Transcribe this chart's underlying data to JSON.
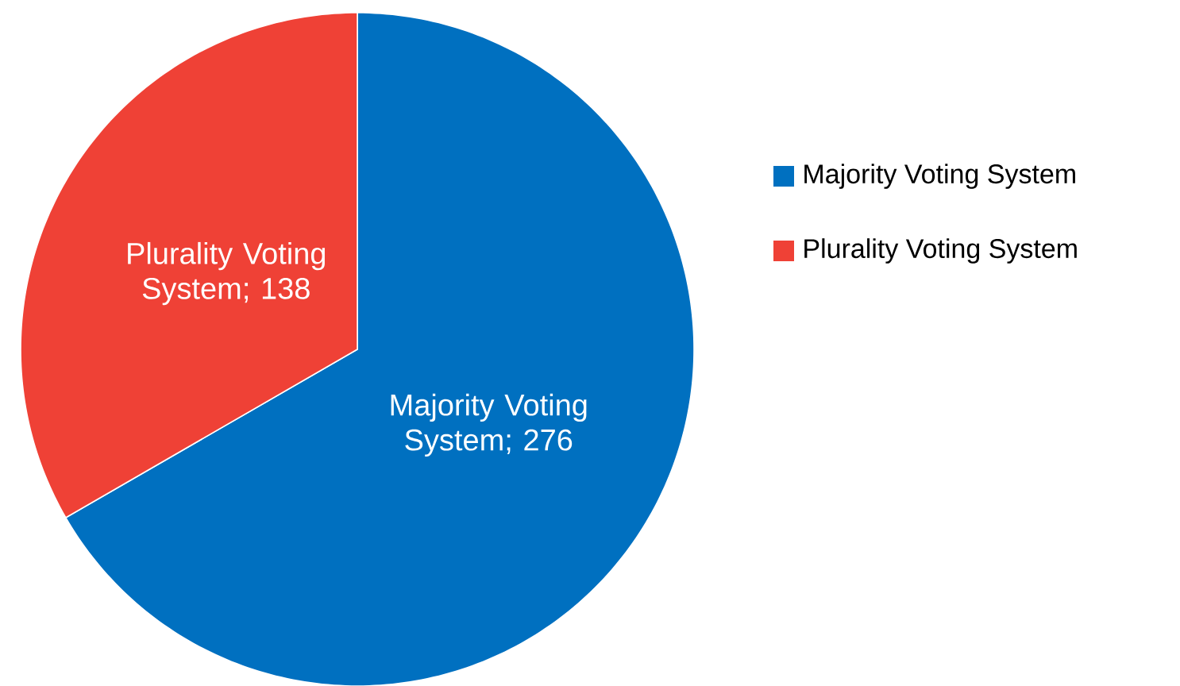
{
  "chart_data": {
    "type": "pie",
    "categories": [
      "Majority Voting System",
      "Plurality Voting System"
    ],
    "values": [
      276,
      138
    ],
    "colors": [
      "#0070c0",
      "#ef4136"
    ],
    "value_labels": [
      "Majority Voting System; 276",
      "Plurality Voting System; 138"
    ],
    "legend": "right"
  }
}
